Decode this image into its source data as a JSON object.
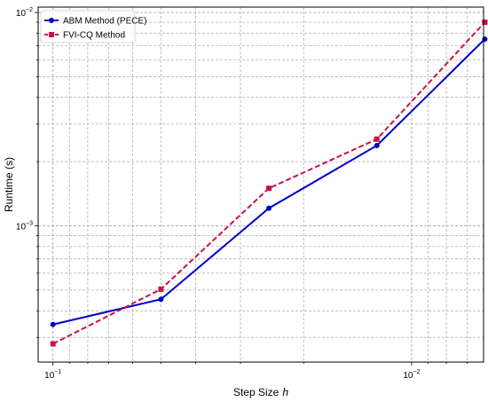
{
  "chart_data": {
    "type": "line",
    "x_scale": "log-reversed",
    "y_scale": "log",
    "xlabel": "Step Size",
    "xlabel_var": "h",
    "ylabel": "Runtime (s)",
    "xlim": [
      0.11,
      0.0063
    ],
    "ylim": [
      0.00023,
      0.0106
    ],
    "grid": "both, dashed",
    "legend_position": "top-left",
    "x_major_ticks": [
      {
        "value": 0.1,
        "base": "10",
        "exp": "−1"
      },
      {
        "value": 0.01,
        "base": "10",
        "exp": "−2"
      }
    ],
    "y_major_ticks": [
      {
        "value": 0.001,
        "base": "10",
        "exp": "−3"
      },
      {
        "value": 0.01,
        "base": "10",
        "exp": "−2"
      }
    ],
    "series": [
      {
        "name": "ABM Method (PECE)",
        "color": "#0000cc",
        "line_style": "solid",
        "marker": "circle",
        "x": [
          0.1,
          0.05,
          0.025,
          0.0125,
          0.00625
        ],
        "y": [
          0.000345,
          0.000453,
          0.00121,
          0.00238,
          0.0075
        ]
      },
      {
        "name": "FVI-CQ Method",
        "color": "#cc1144",
        "line_style": "dashed",
        "marker": "square",
        "x": [
          0.1,
          0.05,
          0.025,
          0.0125,
          0.00625
        ],
        "y": [
          0.00028,
          0.000505,
          0.0015,
          0.00255,
          0.009
        ]
      }
    ]
  }
}
